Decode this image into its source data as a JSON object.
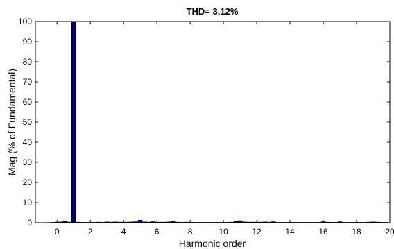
{
  "chart_data": {
    "type": "bar",
    "title": "THD= 3.12%",
    "xlabel": "Harmonic order",
    "ylabel": "Mag (% of Fundamental)",
    "xlim": [
      -1.3,
      20
    ],
    "ylim": [
      0,
      100
    ],
    "xticks": [
      0,
      2,
      4,
      6,
      8,
      10,
      12,
      14,
      16,
      18,
      20
    ],
    "yticks": [
      0,
      10,
      20,
      30,
      40,
      50,
      60,
      70,
      80,
      90,
      100
    ],
    "bar_color": "#000080",
    "x": [
      -0.75,
      -0.5,
      -0.25,
      0,
      0.25,
      0.5,
      0.75,
      1,
      1.25,
      1.5,
      1.75,
      2,
      2.25,
      2.5,
      2.75,
      3,
      3.25,
      3.5,
      3.75,
      4,
      4.25,
      4.5,
      4.75,
      5,
      5.25,
      5.5,
      5.75,
      6,
      6.25,
      6.5,
      6.75,
      7,
      7.25,
      7.5,
      7.75,
      8,
      8.25,
      8.5,
      8.75,
      9,
      9.25,
      9.5,
      9.75,
      10,
      10.25,
      10.5,
      10.75,
      11,
      11.25,
      11.5,
      11.75,
      12,
      12.25,
      12.5,
      12.75,
      13,
      13.25,
      13.5,
      13.75,
      14,
      14.25,
      14.5,
      14.75,
      15,
      15.25,
      15.5,
      15.75,
      16,
      16.25,
      16.5,
      16.75,
      17,
      17.25,
      17.5,
      17.75,
      18,
      18.25,
      18.5,
      18.75,
      19,
      19.25,
      19.5,
      19.75
    ],
    "values": [
      0.1,
      0.1,
      0.2,
      0.3,
      0.4,
      0.8,
      0.3,
      100,
      0.3,
      0.2,
      0.2,
      0.2,
      0.2,
      0.3,
      0.2,
      0.4,
      0.3,
      0.4,
      0.3,
      0.3,
      0.3,
      0.4,
      0.5,
      1.3,
      0.4,
      0.3,
      0.5,
      0.3,
      0.3,
      0.3,
      0.4,
      0.9,
      0.3,
      0.2,
      0.3,
      0.2,
      0.2,
      0.2,
      0.2,
      0.2,
      0.2,
      0.2,
      0.2,
      0.2,
      0.2,
      0.3,
      0.6,
      1.0,
      0.4,
      0.3,
      0.3,
      0.3,
      0.3,
      0.4,
      0.3,
      0.5,
      0.2,
      0.2,
      0.2,
      0.2,
      0.2,
      0.2,
      0.2,
      0.2,
      0.2,
      0.2,
      0.2,
      0.5,
      0.3,
      0.2,
      0.2,
      0.5,
      0.2,
      0.2,
      0.2,
      0.2,
      0.2,
      0.2,
      0.3,
      0.4,
      0.3,
      0.2,
      0.2
    ]
  }
}
